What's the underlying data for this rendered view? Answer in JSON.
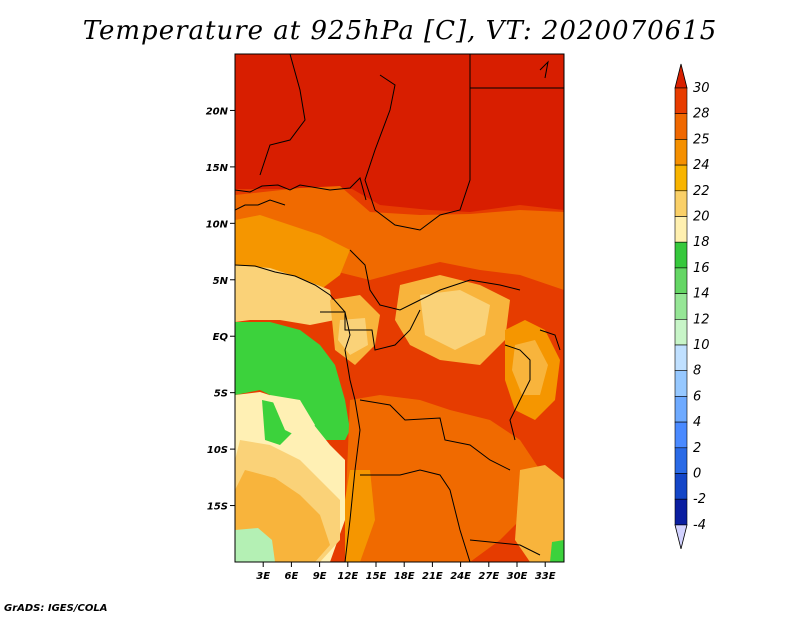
{
  "title": "Temperature at 925hPa [C], VT: 2020070615",
  "credit": "GrADS: IGES/COLA",
  "map": {
    "region": "Central Africa",
    "lon_range": [
      0,
      35
    ],
    "lat_range": [
      -20,
      25
    ],
    "lat_ticks": [
      {
        "value": 20,
        "label": "20N"
      },
      {
        "value": 15,
        "label": "15N"
      },
      {
        "value": 10,
        "label": "10N"
      },
      {
        "value": 5,
        "label": "5N"
      },
      {
        "value": 0,
        "label": "EQ"
      },
      {
        "value": -5,
        "label": "5S"
      },
      {
        "value": -10,
        "label": "10S"
      },
      {
        "value": -15,
        "label": "15S"
      }
    ],
    "lon_ticks": [
      {
        "value": 3,
        "label": "3E"
      },
      {
        "value": 6,
        "label": "6E"
      },
      {
        "value": 9,
        "label": "9E"
      },
      {
        "value": 12,
        "label": "12E"
      },
      {
        "value": 15,
        "label": "15E"
      },
      {
        "value": 18,
        "label": "18E"
      },
      {
        "value": 21,
        "label": "21E"
      },
      {
        "value": 24,
        "label": "24E"
      },
      {
        "value": 27,
        "label": "27E"
      },
      {
        "value": 30,
        "label": "30E"
      },
      {
        "value": 33,
        "label": "33E"
      }
    ]
  },
  "colorbar": {
    "levels": [
      "30",
      "28",
      "25",
      "24",
      "22",
      "20",
      "18",
      "16",
      "14",
      "12",
      "10",
      "8",
      "6",
      "4",
      "2",
      "0",
      "-2",
      "-4"
    ],
    "colors": [
      "#d82000",
      "#e83c00",
      "#f06800",
      "#f59000",
      "#f8b400",
      "#fad068",
      "#fff0b0",
      "#36c83c",
      "#64d664",
      "#96e696",
      "#c8f5c8",
      "#c0e0ff",
      "#96c8ff",
      "#6eaaff",
      "#4a8aff",
      "#2a6ae6",
      "#1446c8",
      "#0a1ea0",
      "#000064"
    ],
    "top_arrow_color": "#d82000",
    "bottom_arrow_color": "#d2d2ff"
  },
  "field_colors": {
    "t30": "#d81e00",
    "t28": "#e63c00",
    "t25": "#f06a00",
    "t24": "#f59600",
    "t22": "#f8b43c",
    "t20": "#fad278",
    "t18": "#fff0b4",
    "t16": "#3cd23c",
    "t14": "#64dc64",
    "t12": "#b4f0b4"
  }
}
